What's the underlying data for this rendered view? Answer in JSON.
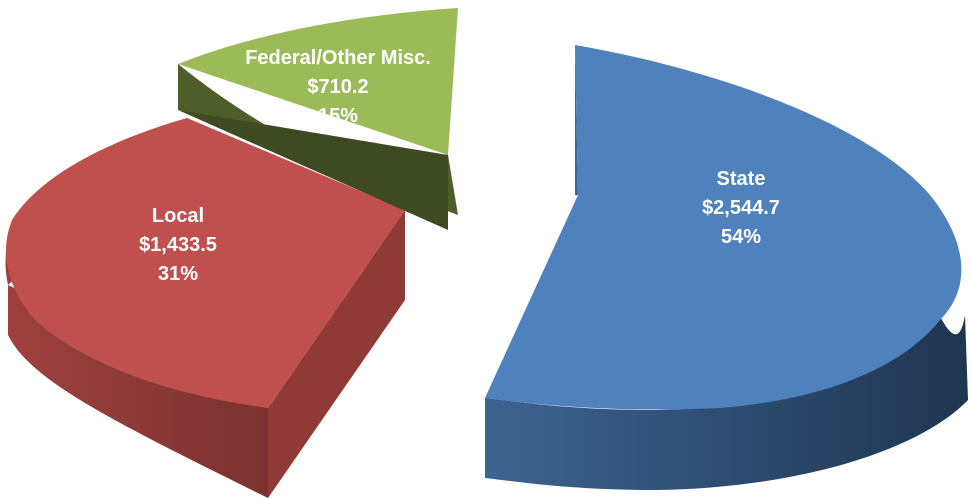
{
  "chart_data": {
    "type": "pie",
    "style": "3d-exploded",
    "title": "",
    "slices": [
      {
        "category": "State",
        "value": 2544.7,
        "value_label": "$2,544.7",
        "percent_label": "54%",
        "color": "#4F81BD",
        "depth_color": "#2E4D73"
      },
      {
        "category": "Local",
        "value": 1433.5,
        "value_label": "$1,433.5",
        "percent_label": "31%",
        "color": "#C0504D",
        "depth_color": "#8B3A37"
      },
      {
        "category": "Federal/Other Misc.",
        "value": 710.2,
        "value_label": "$710.2",
        "percent_label": "15%",
        "color": "#9BBB59",
        "depth_color": "#4E5E2A"
      }
    ]
  }
}
